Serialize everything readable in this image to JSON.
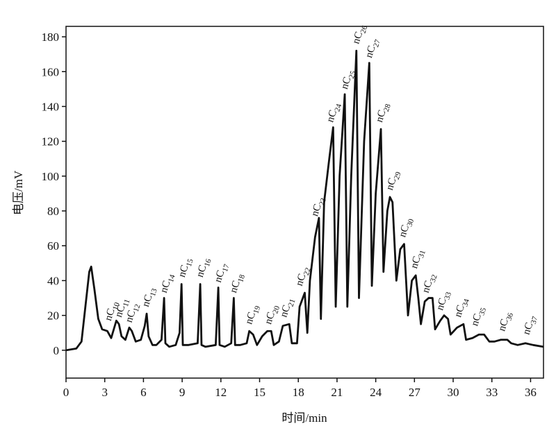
{
  "chart_data": {
    "type": "line",
    "xlabel": "时间/min",
    "ylabel": "电压/mV",
    "xlim": [
      0,
      37
    ],
    "ylim": [
      -16,
      186
    ],
    "xticks": [
      0,
      3,
      6,
      9,
      12,
      15,
      18,
      21,
      24,
      27,
      30,
      33,
      36
    ],
    "yticks": [
      0,
      20,
      40,
      60,
      80,
      100,
      120,
      140,
      160,
      180
    ],
    "x": [
      0,
      0.8,
      1.2,
      1.5,
      1.8,
      1.95,
      2.2,
      2.5,
      2.8,
      3.2,
      3.5,
      3.7,
      3.9,
      4.1,
      4.3,
      4.6,
      4.9,
      5.1,
      5.4,
      5.8,
      6.1,
      6.25,
      6.4,
      6.7,
      7.0,
      7.4,
      7.6,
      7.7,
      8.0,
      8.5,
      8.8,
      8.95,
      9.05,
      9.5,
      10.2,
      10.4,
      10.5,
      10.8,
      11.6,
      11.8,
      11.9,
      12.3,
      12.8,
      13.0,
      13.1,
      13.5,
      14.0,
      14.2,
      14.5,
      14.8,
      15.2,
      15.6,
      15.9,
      16.1,
      16.5,
      16.8,
      17.3,
      17.5,
      17.9,
      18.1,
      18.5,
      18.7,
      18.9,
      19.3,
      19.6,
      19.75,
      20.0,
      20.4,
      20.7,
      20.9,
      21.2,
      21.6,
      21.8,
      22.1,
      22.5,
      22.7,
      23.1,
      23.5,
      23.7,
      24.0,
      24.4,
      24.6,
      24.9,
      25.1,
      25.3,
      25.6,
      25.9,
      26.2,
      26.5,
      26.8,
      27.1,
      27.3,
      27.5,
      27.8,
      28.1,
      28.4,
      28.6,
      29.0,
      29.3,
      29.6,
      29.8,
      30.3,
      30.8,
      31.0,
      31.5,
      32.0,
      32.4,
      32.8,
      33.2,
      33.7,
      34.2,
      34.5,
      35.0,
      35.6,
      36.2,
      37.0
    ],
    "series": [
      {
        "color": "#111111",
        "values": [
          0,
          1,
          5,
          25,
          45,
          48,
          35,
          18,
          12,
          11,
          7,
          12,
          17,
          15,
          8,
          6,
          13,
          11,
          5,
          6,
          14,
          21,
          8,
          3,
          3,
          6,
          30,
          4,
          2,
          3,
          10,
          38,
          3,
          3,
          4,
          38,
          3,
          2,
          3,
          36,
          3,
          2,
          4,
          30,
          3,
          3,
          4,
          11,
          9,
          3,
          8,
          11,
          11,
          3,
          5,
          14,
          15,
          4,
          4,
          25,
          33,
          10,
          40,
          65,
          76,
          18,
          85,
          110,
          128,
          25,
          100,
          147,
          25,
          100,
          172,
          30,
          120,
          165,
          37,
          90,
          127,
          45,
          80,
          88,
          85,
          40,
          58,
          61,
          20,
          40,
          43,
          30,
          15,
          28,
          30,
          30,
          12,
          17,
          20,
          18,
          9,
          13,
          15,
          6,
          7,
          9,
          9,
          5,
          5,
          6,
          6,
          4,
          3,
          4,
          3,
          2
        ]
      }
    ],
    "annotations": [
      {
        "text": "nC",
        "sub": "10",
        "x": 3.2,
        "y": 15
      },
      {
        "text": "nC",
        "sub": "11",
        "x": 4.0,
        "y": 17
      },
      {
        "text": "nC",
        "sub": "12",
        "x": 4.8,
        "y": 14
      },
      {
        "text": "nC",
        "sub": "13",
        "x": 6.1,
        "y": 23
      },
      {
        "text": "nC",
        "sub": "14",
        "x": 7.5,
        "y": 31
      },
      {
        "text": "nC",
        "sub": "15",
        "x": 8.9,
        "y": 40
      },
      {
        "text": "nC",
        "sub": "16",
        "x": 10.3,
        "y": 40
      },
      {
        "text": "nC",
        "sub": "17",
        "x": 11.7,
        "y": 37
      },
      {
        "text": "nC",
        "sub": "18",
        "x": 12.9,
        "y": 31
      },
      {
        "text": "nC",
        "sub": "19",
        "x": 14.1,
        "y": 13
      },
      {
        "text": "nC",
        "sub": "20",
        "x": 15.6,
        "y": 13
      },
      {
        "text": "nC",
        "sub": "21",
        "x": 16.8,
        "y": 17
      },
      {
        "text": "nC",
        "sub": "22",
        "x": 18.0,
        "y": 35
      },
      {
        "text": "nC",
        "sub": "23",
        "x": 19.2,
        "y": 75
      },
      {
        "text": "nC",
        "sub": "24",
        "x": 20.4,
        "y": 129
      },
      {
        "text": "nC",
        "sub": "25",
        "x": 21.5,
        "y": 148
      },
      {
        "text": "nC",
        "sub": "26",
        "x": 22.4,
        "y": 174
      },
      {
        "text": "nC",
        "sub": "27",
        "x": 23.4,
        "y": 166
      },
      {
        "text": "nC",
        "sub": "28",
        "x": 24.2,
        "y": 129
      },
      {
        "text": "nC",
        "sub": "29",
        "x": 25.0,
        "y": 90
      },
      {
        "text": "nC",
        "sub": "30",
        "x": 26.0,
        "y": 63
      },
      {
        "text": "nC",
        "sub": "31",
        "x": 26.9,
        "y": 45
      },
      {
        "text": "nC",
        "sub": "32",
        "x": 27.8,
        "y": 31
      },
      {
        "text": "nC",
        "sub": "33",
        "x": 28.9,
        "y": 21
      },
      {
        "text": "nC",
        "sub": "34",
        "x": 30.3,
        "y": 17
      },
      {
        "text": "nC",
        "sub": "35",
        "x": 31.6,
        "y": 12
      },
      {
        "text": "nC",
        "sub": "36",
        "x": 33.7,
        "y": 9
      },
      {
        "text": "nC",
        "sub": "37",
        "x": 35.6,
        "y": 7
      }
    ]
  }
}
